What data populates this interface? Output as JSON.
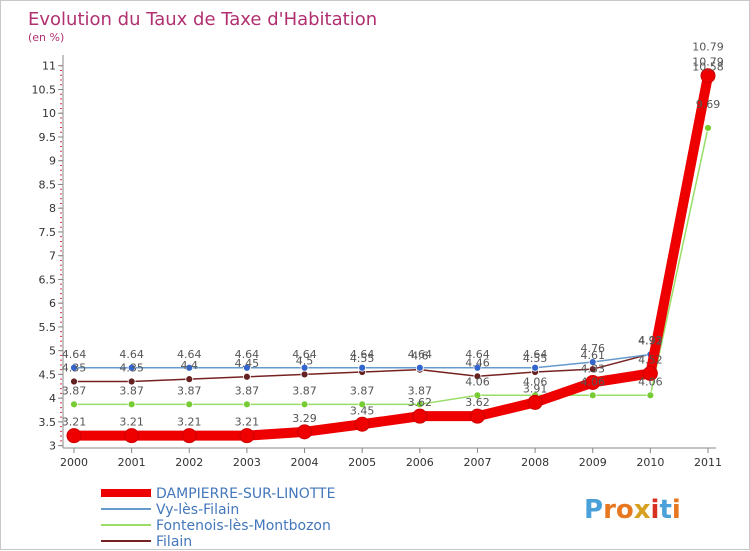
{
  "chart_data": {
    "type": "line",
    "title": "Evolution du Taux de Taxe d'Habitation",
    "subtitle": "(en %)",
    "xlabel": "",
    "ylabel": "",
    "categories": [
      "2000",
      "2001",
      "2002",
      "2003",
      "2004",
      "2005",
      "2006",
      "2007",
      "2008",
      "2009",
      "2010",
      "2011"
    ],
    "yticks": [
      3,
      3.5,
      4,
      4.5,
      5,
      5.5,
      6,
      6.5,
      7,
      7.5,
      8,
      8.5,
      9,
      9.5,
      10,
      10.5,
      11
    ],
    "ytick_labels": [
      "3",
      "3.5",
      "4",
      "4.5",
      "5",
      "5.5",
      "6",
      "6.5",
      "7",
      "7.5",
      "8",
      "8.5",
      "9",
      "9.5",
      "10",
      "10.5",
      "11"
    ],
    "ylim": [
      2.95,
      11.1
    ],
    "grid": false,
    "series": [
      {
        "name": "DAMPIERRE-SUR-LINOTTE",
        "color": "#ee0000",
        "marker_color": "#ee0000",
        "values": [
          3.21,
          3.21,
          3.21,
          3.21,
          3.29,
          3.45,
          3.62,
          3.62,
          3.91,
          4.33,
          4.52,
          10.79
        ],
        "labels": [
          "3.21",
          "3.21",
          "3.21",
          "3.21",
          "3.29",
          "3.45",
          "3.62",
          "3.62",
          "3.91",
          "4.33",
          "4.52",
          "10.79"
        ]
      },
      {
        "name": "Vy-lès-Filain",
        "color": "#6699cc",
        "marker_color": "#3366cc",
        "values": [
          4.64,
          4.64,
          4.64,
          4.64,
          4.64,
          4.64,
          4.64,
          4.64,
          4.64,
          4.76,
          4.92,
          10.58
        ],
        "labels": [
          "4.64",
          "4.64",
          "4.64",
          "4.64",
          "4.64",
          "4.64",
          "4.64",
          "4.64",
          "4.64",
          "4.76",
          "4.92",
          "10.58"
        ]
      },
      {
        "name": "Fontenois-lès-Montbozon",
        "color": "#99dd66",
        "marker_color": "#77cc33",
        "values": [
          3.87,
          3.87,
          3.87,
          3.87,
          3.87,
          3.87,
          3.87,
          4.06,
          4.06,
          4.06,
          4.06,
          9.69
        ],
        "labels": [
          "3.87",
          "3.87",
          "3.87",
          "3.87",
          "3.87",
          "3.87",
          "3.87",
          "4.06",
          "4.06",
          "4.06",
          "4.06",
          "9.69"
        ]
      },
      {
        "name": "Filain",
        "color": "#772222",
        "marker_color": "#662222",
        "values": [
          4.35,
          4.35,
          4.4,
          4.45,
          4.5,
          4.55,
          4.6,
          4.46,
          4.55,
          4.61,
          4.93,
          10.79
        ],
        "labels": [
          "4.35",
          "4.35",
          "4.4",
          "4.45",
          "4.5",
          "4.55",
          "4.6",
          "4.46",
          "4.55",
          "4.61",
          "4.93",
          "10.79"
        ]
      }
    ],
    "legend": {
      "placement": "bottom-left",
      "items": [
        "DAMPIERRE-SUR-LINOTTE",
        "Vy-lès-Filain",
        "Fontenois-lès-Montbozon",
        "Filain"
      ]
    }
  },
  "logo": {
    "text": "Proxiti",
    "letters": [
      "P",
      "r",
      "o",
      "x",
      "i",
      "t",
      "i"
    ],
    "colors": [
      "#4aa0d8",
      "#e87820",
      "#e87820",
      "#d8a020",
      "#d83020",
      "#4aa0d8",
      "#e87820"
    ]
  }
}
